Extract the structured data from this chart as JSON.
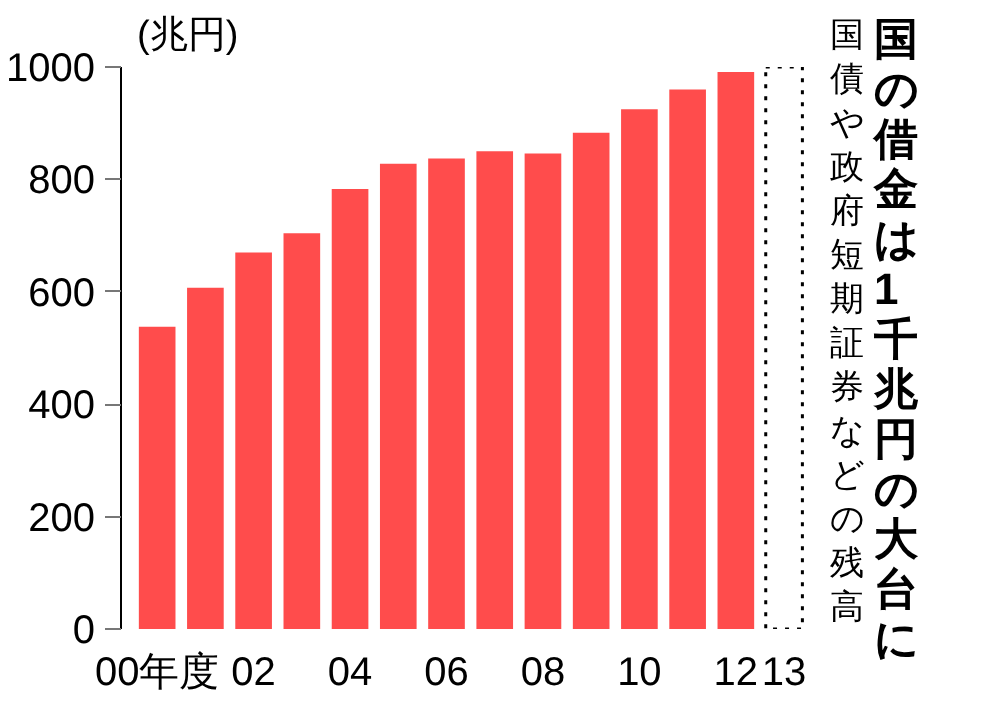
{
  "chart_data": {
    "type": "bar",
    "title": "国の借金は1千兆円の大台に",
    "subtitle": "国債や政府短期証券などの残高",
    "ylabel": "(兆円)",
    "categories": [
      "00年度",
      null,
      "02",
      null,
      "04",
      null,
      "06",
      null,
      "08",
      null,
      "10",
      null,
      "12",
      "13"
    ],
    "series": [
      {
        "color": "#ff4c4c",
        "values": [
          538,
          607,
          670,
          704,
          783,
          828,
          837,
          850,
          846,
          883,
          925,
          960,
          991,
          null
        ]
      },
      {
        "color": "#000000",
        "line_style": "dotted",
        "values": [
          null,
          null,
          null,
          null,
          null,
          null,
          null,
          null,
          null,
          null,
          null,
          null,
          null,
          1000
        ]
      }
    ],
    "ylim": [
      0,
      1000
    ],
    "yticks": [
      0,
      200,
      400,
      600,
      800,
      1000
    ],
    "grid": false
  }
}
